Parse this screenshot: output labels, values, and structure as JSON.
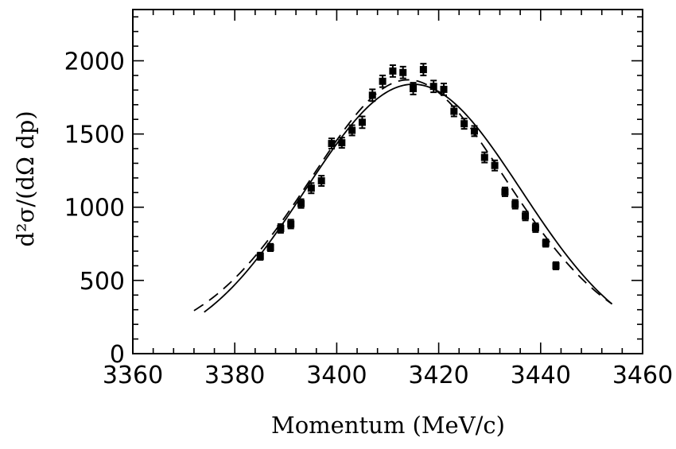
{
  "chart_data": {
    "type": "scatter",
    "xlabel": "Momentum (MeV/c)",
    "ylabel": "d²σ/(dΩ dp)",
    "xlim": [
      3360,
      3460
    ],
    "ylim": [
      0,
      2350
    ],
    "x_ticks": [
      3360,
      3380,
      3400,
      3420,
      3440,
      3460
    ],
    "y_ticks": [
      0,
      500,
      1000,
      1500,
      2000
    ],
    "grid": false,
    "points": [
      {
        "x": 3385,
        "y": 665,
        "err": 25
      },
      {
        "x": 3387,
        "y": 725,
        "err": 25
      },
      {
        "x": 3389,
        "y": 855,
        "err": 30
      },
      {
        "x": 3391,
        "y": 885,
        "err": 30
      },
      {
        "x": 3393,
        "y": 1025,
        "err": 30
      },
      {
        "x": 3395,
        "y": 1130,
        "err": 35
      },
      {
        "x": 3397,
        "y": 1180,
        "err": 35
      },
      {
        "x": 3399,
        "y": 1435,
        "err": 35
      },
      {
        "x": 3401,
        "y": 1440,
        "err": 35
      },
      {
        "x": 3403,
        "y": 1525,
        "err": 35
      },
      {
        "x": 3405,
        "y": 1580,
        "err": 40
      },
      {
        "x": 3407,
        "y": 1765,
        "err": 40
      },
      {
        "x": 3409,
        "y": 1860,
        "err": 40
      },
      {
        "x": 3411,
        "y": 1930,
        "err": 40
      },
      {
        "x": 3413,
        "y": 1920,
        "err": 40
      },
      {
        "x": 3415,
        "y": 1810,
        "err": 40
      },
      {
        "x": 3417,
        "y": 1940,
        "err": 40
      },
      {
        "x": 3419,
        "y": 1825,
        "err": 40
      },
      {
        "x": 3421,
        "y": 1805,
        "err": 40
      },
      {
        "x": 3423,
        "y": 1655,
        "err": 35
      },
      {
        "x": 3425,
        "y": 1570,
        "err": 35
      },
      {
        "x": 3427,
        "y": 1520,
        "err": 35
      },
      {
        "x": 3429,
        "y": 1340,
        "err": 35
      },
      {
        "x": 3431,
        "y": 1285,
        "err": 35
      },
      {
        "x": 3433,
        "y": 1105,
        "err": 30
      },
      {
        "x": 3435,
        "y": 1020,
        "err": 30
      },
      {
        "x": 3437,
        "y": 940,
        "err": 30
      },
      {
        "x": 3439,
        "y": 860,
        "err": 30
      },
      {
        "x": 3441,
        "y": 755,
        "err": 25
      },
      {
        "x": 3443,
        "y": 600,
        "err": 25
      }
    ],
    "curves": [
      {
        "style": "solid",
        "shape": "gaussian",
        "center": 3415,
        "amplitude": 1840,
        "sigma": 21.2,
        "x_range": [
          3374,
          3454
        ]
      },
      {
        "style": "dashed",
        "shape": "lorentzian-gaussian",
        "center": 3414,
        "amplitude": 1870,
        "x_range": [
          3372,
          3454
        ]
      }
    ]
  }
}
